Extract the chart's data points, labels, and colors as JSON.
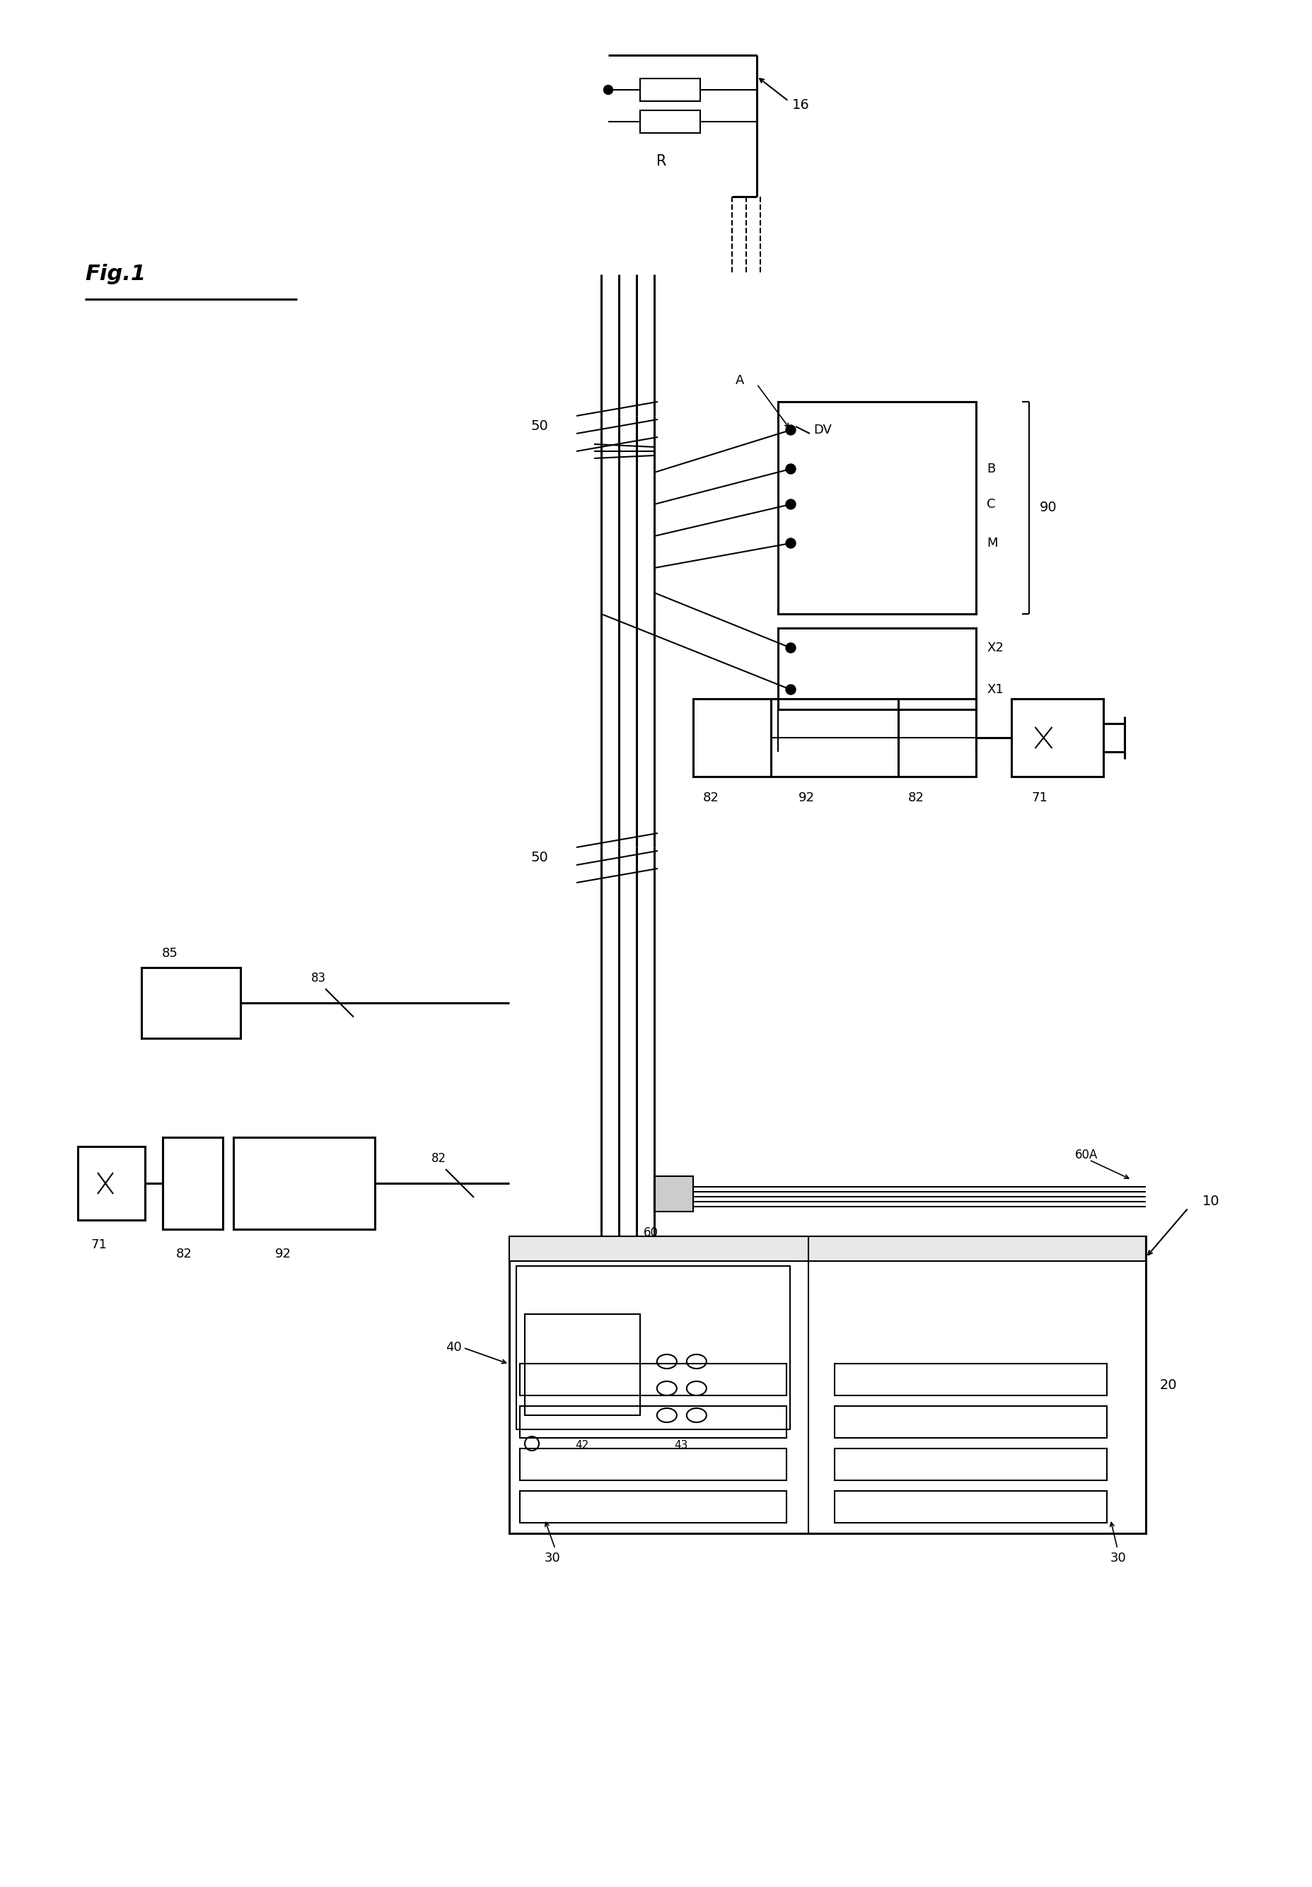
{
  "bg_color": "#ffffff",
  "lc": "#000000",
  "lw": 1.5,
  "lw2": 2.2,
  "fig_w": 18.56,
  "fig_h": 26.68,
  "xlim": [
    0,
    18.56
  ],
  "ylim": [
    0,
    26.68
  ],
  "labels": {
    "fig1": "Fig.1",
    "R": "R",
    "16": "16",
    "50": "50",
    "90": "90",
    "DV": "DV",
    "A": "A",
    "B": "B",
    "C": "C",
    "M": "M",
    "X2": "X2",
    "X1": "X1",
    "82": "82",
    "92": "92",
    "71": "71",
    "10": "10",
    "20": "20",
    "30": "30",
    "40": "40",
    "42": "42",
    "43": "43",
    "60": "60",
    "60A": "60A",
    "83": "83",
    "85": "85"
  }
}
